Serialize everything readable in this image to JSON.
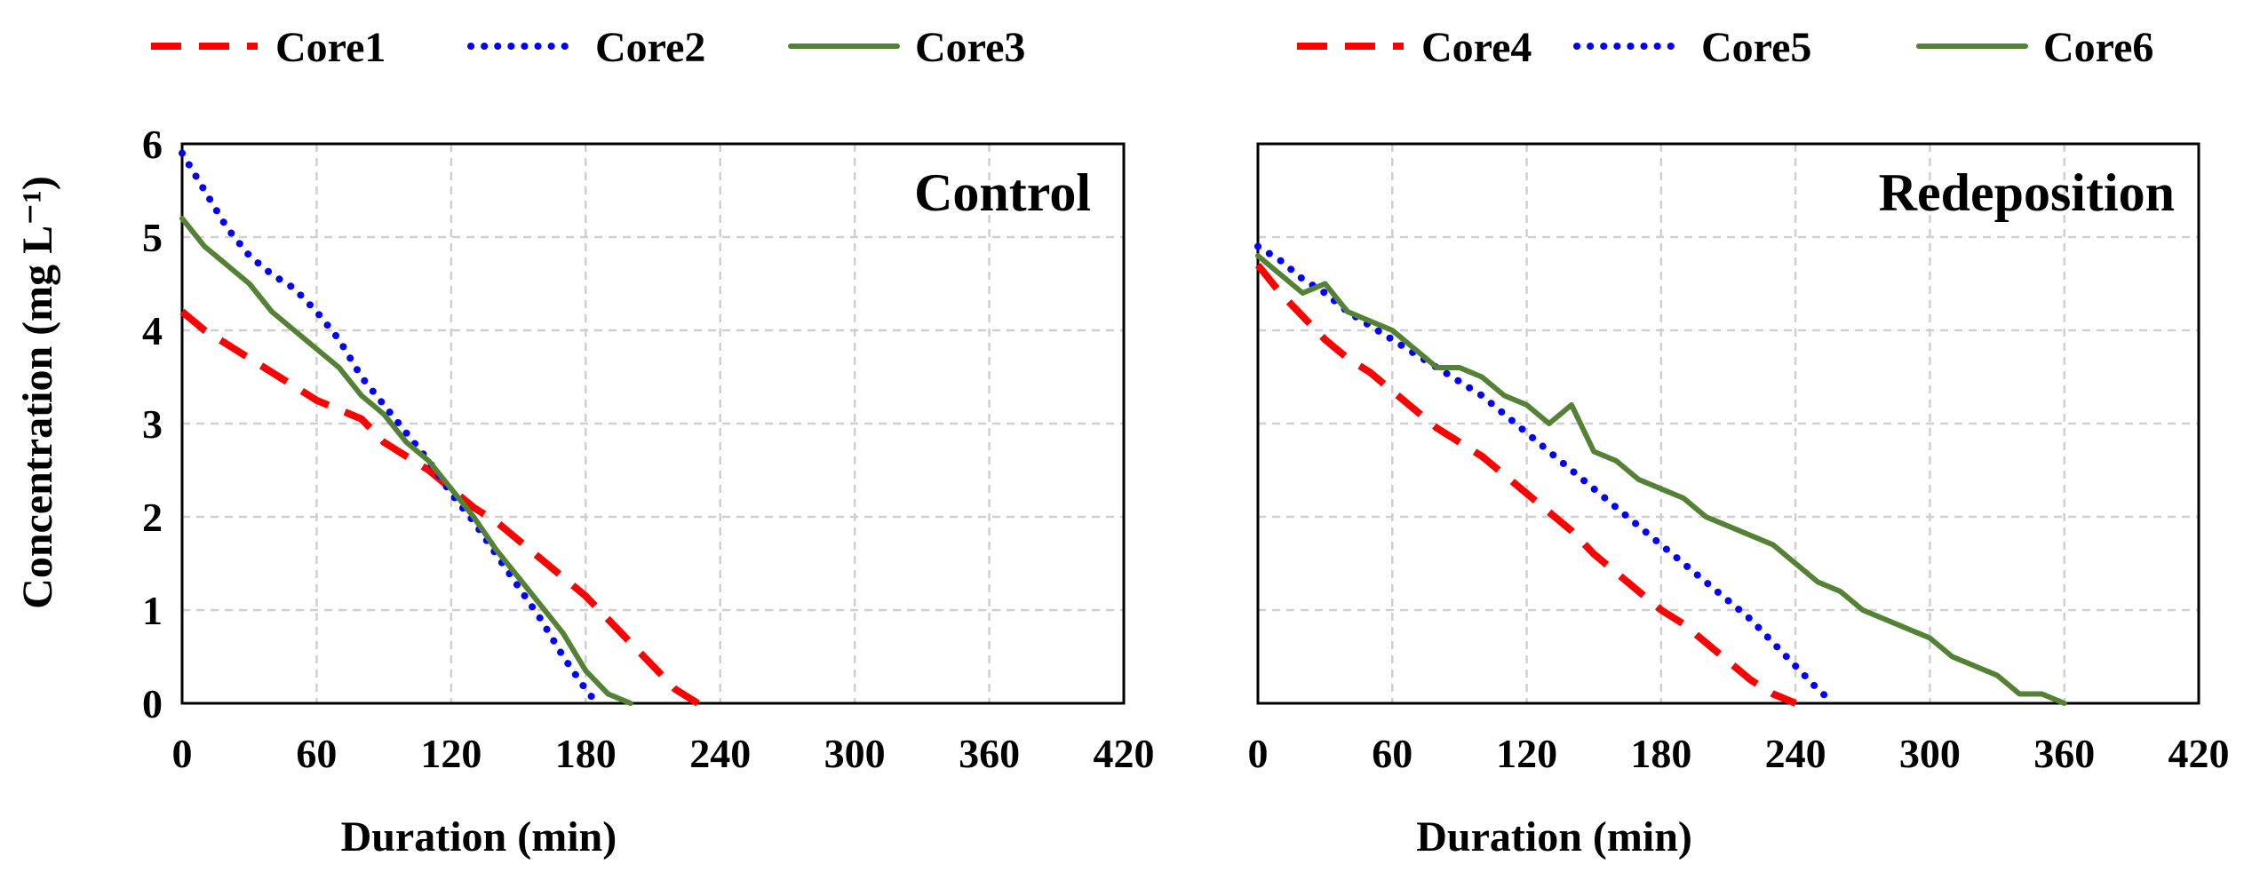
{
  "colors": {
    "core_red": "#ff0000",
    "core_blue": "#0000ff",
    "core_green": "#548235"
  },
  "y_axis_title": "Concentration (mg L⁻¹)",
  "chart_data": [
    {
      "type": "line",
      "panel_label": "Control",
      "xlabel": "Duration (min)",
      "ylabel": "Concentration (mg L⁻¹)",
      "xlim": [
        0,
        420
      ],
      "ylim": [
        0,
        6
      ],
      "x_ticks": [
        0,
        60,
        120,
        180,
        240,
        300,
        360,
        420
      ],
      "y_ticks": [
        0,
        1,
        2,
        3,
        4,
        5,
        6
      ],
      "grid": true,
      "legend_position": "top",
      "series": [
        {
          "name": "Core1",
          "style": "dashed",
          "color": "#ff0000",
          "x": [
            0,
            10,
            20,
            30,
            40,
            50,
            60,
            70,
            80,
            90,
            100,
            110,
            120,
            130,
            140,
            150,
            160,
            170,
            180,
            190,
            200,
            210,
            220,
            230
          ],
          "y": [
            4.2,
            4.0,
            3.85,
            3.7,
            3.55,
            3.4,
            3.25,
            3.15,
            3.05,
            2.8,
            2.65,
            2.5,
            2.3,
            2.1,
            1.95,
            1.75,
            1.55,
            1.35,
            1.15,
            0.9,
            0.65,
            0.4,
            0.15,
            0.0
          ]
        },
        {
          "name": "Core2",
          "style": "dotted",
          "color": "#0000ff",
          "x": [
            0,
            10,
            20,
            30,
            40,
            50,
            60,
            70,
            80,
            90,
            100,
            110,
            120,
            130,
            140,
            150,
            160,
            170,
            180,
            185
          ],
          "y": [
            5.9,
            5.5,
            5.1,
            4.8,
            4.6,
            4.45,
            4.2,
            3.9,
            3.5,
            3.2,
            2.9,
            2.6,
            2.25,
            1.95,
            1.6,
            1.25,
            0.9,
            0.5,
            0.15,
            0.0
          ]
        },
        {
          "name": "Core3",
          "style": "solid",
          "color": "#548235",
          "x": [
            0,
            10,
            20,
            30,
            40,
            50,
            60,
            70,
            80,
            90,
            100,
            110,
            120,
            130,
            140,
            150,
            160,
            170,
            180,
            190,
            200
          ],
          "y": [
            5.2,
            4.9,
            4.7,
            4.5,
            4.2,
            4.0,
            3.8,
            3.6,
            3.3,
            3.1,
            2.8,
            2.6,
            2.3,
            2.0,
            1.65,
            1.35,
            1.05,
            0.75,
            0.35,
            0.1,
            0.0
          ]
        }
      ]
    },
    {
      "type": "line",
      "panel_label": "Redeposition",
      "xlabel": "Duration (min)",
      "ylabel": "",
      "xlim": [
        0,
        420
      ],
      "ylim": [
        0,
        6
      ],
      "x_ticks": [
        0,
        60,
        120,
        180,
        240,
        300,
        360,
        420
      ],
      "y_ticks": [
        0,
        1,
        2,
        3,
        4,
        5,
        6
      ],
      "grid": true,
      "legend_position": "top",
      "series": [
        {
          "name": "Core4",
          "style": "dashed",
          "color": "#ff0000",
          "x": [
            0,
            10,
            20,
            30,
            40,
            50,
            60,
            70,
            80,
            90,
            100,
            110,
            120,
            130,
            140,
            150,
            160,
            170,
            180,
            190,
            200,
            210,
            220,
            230,
            240
          ],
          "y": [
            4.7,
            4.4,
            4.15,
            3.9,
            3.7,
            3.55,
            3.35,
            3.15,
            2.95,
            2.8,
            2.65,
            2.45,
            2.25,
            2.05,
            1.85,
            1.6,
            1.4,
            1.2,
            1.0,
            0.85,
            0.65,
            0.45,
            0.25,
            0.1,
            0.0
          ]
        },
        {
          "name": "Core5",
          "style": "dotted",
          "color": "#0000ff",
          "x": [
            0,
            10,
            20,
            30,
            40,
            50,
            60,
            70,
            80,
            90,
            100,
            110,
            120,
            130,
            140,
            150,
            160,
            170,
            180,
            190,
            200,
            210,
            220,
            230,
            240,
            250,
            257
          ],
          "y": [
            4.9,
            4.75,
            4.55,
            4.4,
            4.2,
            4.05,
            3.9,
            3.75,
            3.6,
            3.45,
            3.3,
            3.1,
            2.9,
            2.7,
            2.5,
            2.3,
            2.1,
            1.9,
            1.7,
            1.5,
            1.3,
            1.1,
            0.9,
            0.65,
            0.4,
            0.15,
            0.0
          ]
        },
        {
          "name": "Core6",
          "style": "solid",
          "color": "#548235",
          "x": [
            0,
            10,
            20,
            30,
            40,
            50,
            60,
            70,
            80,
            90,
            100,
            110,
            120,
            130,
            140,
            150,
            160,
            170,
            180,
            190,
            200,
            210,
            220,
            230,
            240,
            250,
            260,
            270,
            280,
            290,
            300,
            310,
            320,
            330,
            340,
            350,
            360
          ],
          "y": [
            4.8,
            4.6,
            4.4,
            4.5,
            4.2,
            4.1,
            4.0,
            3.8,
            3.6,
            3.6,
            3.5,
            3.3,
            3.2,
            3.0,
            3.2,
            2.7,
            2.6,
            2.4,
            2.3,
            2.2,
            2.0,
            1.9,
            1.8,
            1.7,
            1.5,
            1.3,
            1.2,
            1.0,
            0.9,
            0.8,
            0.7,
            0.5,
            0.4,
            0.3,
            0.1,
            0.1,
            0.0
          ]
        }
      ]
    }
  ]
}
